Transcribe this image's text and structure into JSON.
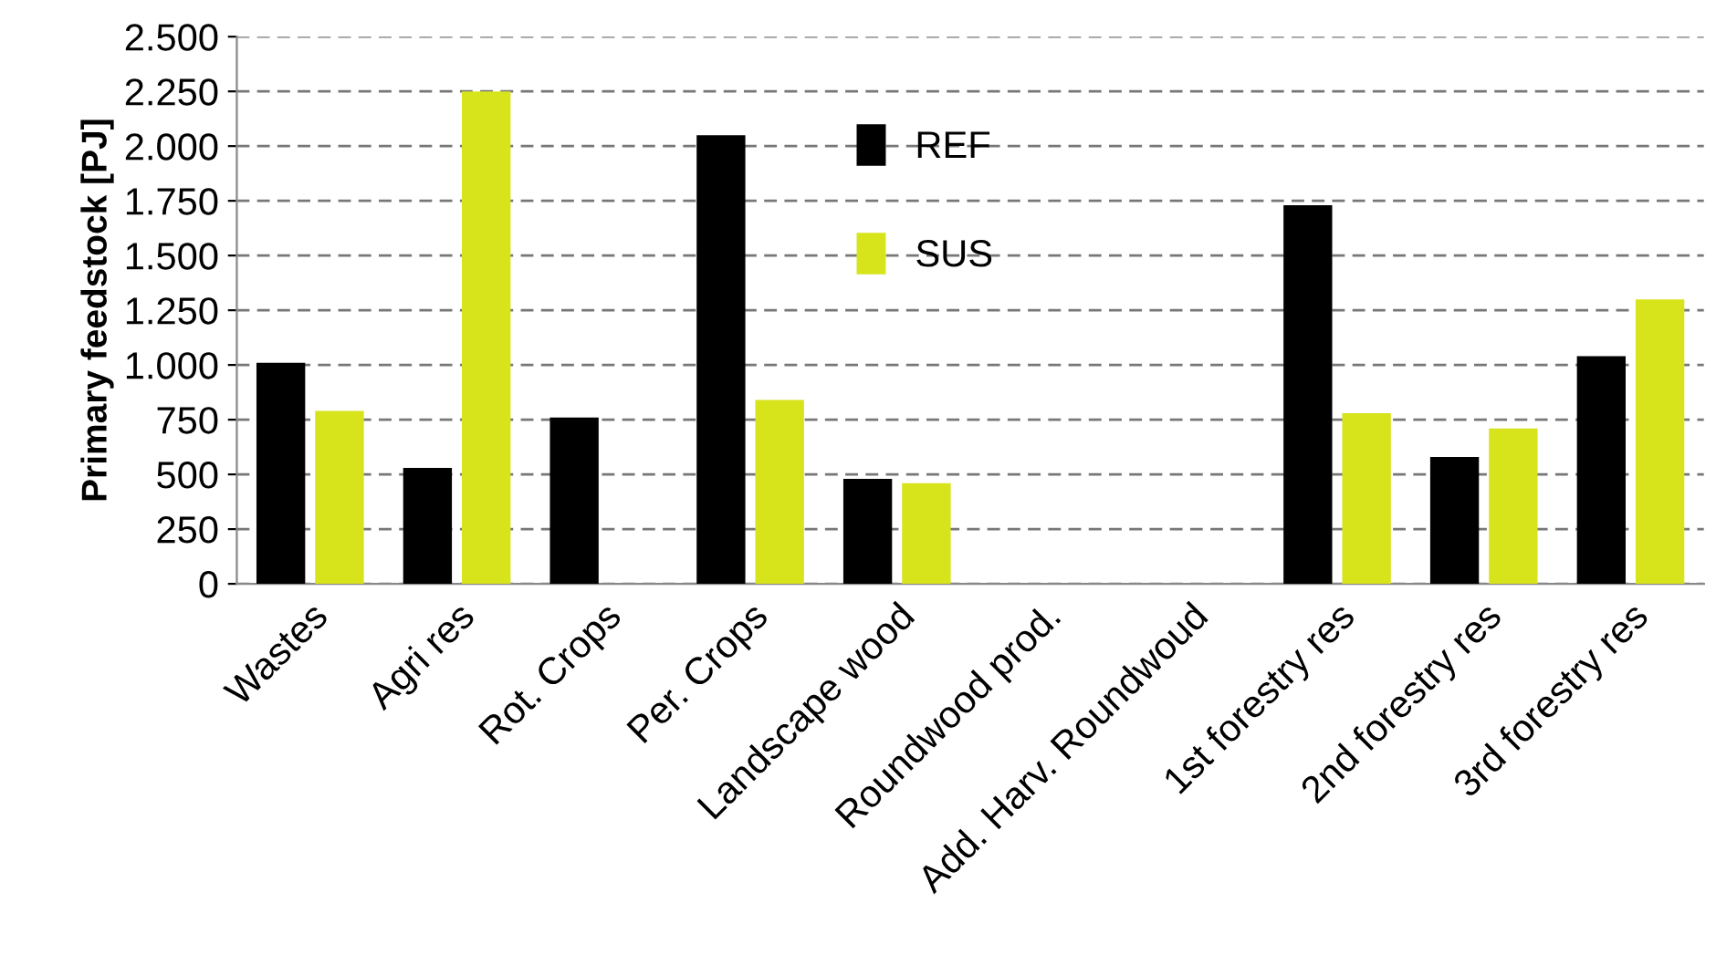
{
  "chart_data": {
    "type": "bar",
    "ylabel": "Primary feedstock [PJ]",
    "categories": [
      "Wastes",
      "Agri res",
      "Rot. Crops",
      "Per. Crops",
      "Landscape wood",
      "Roundwood prod.",
      "Add. Harv. Roundwoud",
      "1st forestry res",
      "2nd forestry res",
      "3rd forestry res"
    ],
    "series": [
      {
        "name": "REF",
        "color": "#000000",
        "values": [
          1010,
          530,
          760,
          2050,
          480,
          0,
          0,
          1730,
          580,
          1040
        ]
      },
      {
        "name": "SUS",
        "color": "#d7e41c",
        "values": [
          790,
          2250,
          0,
          840,
          460,
          0,
          0,
          780,
          710,
          1300
        ]
      }
    ],
    "ylim": [
      0,
      2500
    ],
    "yticks": [
      0,
      {
        "value": 250,
        "label": "250"
      },
      {
        "value": 500,
        "label": "500"
      },
      {
        "value": 750,
        "label": "750"
      },
      {
        "value": 1000,
        "label": "1.000"
      },
      {
        "value": 1250,
        "label": "1.250"
      },
      {
        "value": 1500,
        "label": "1.500"
      },
      {
        "value": 1750,
        "label": "1.750"
      },
      {
        "value": 2000,
        "label": "2.000"
      },
      {
        "value": 2250,
        "label": "2.250"
      },
      {
        "value": 2500,
        "label": "2.500"
      }
    ],
    "grid": "y",
    "legend": "top"
  }
}
